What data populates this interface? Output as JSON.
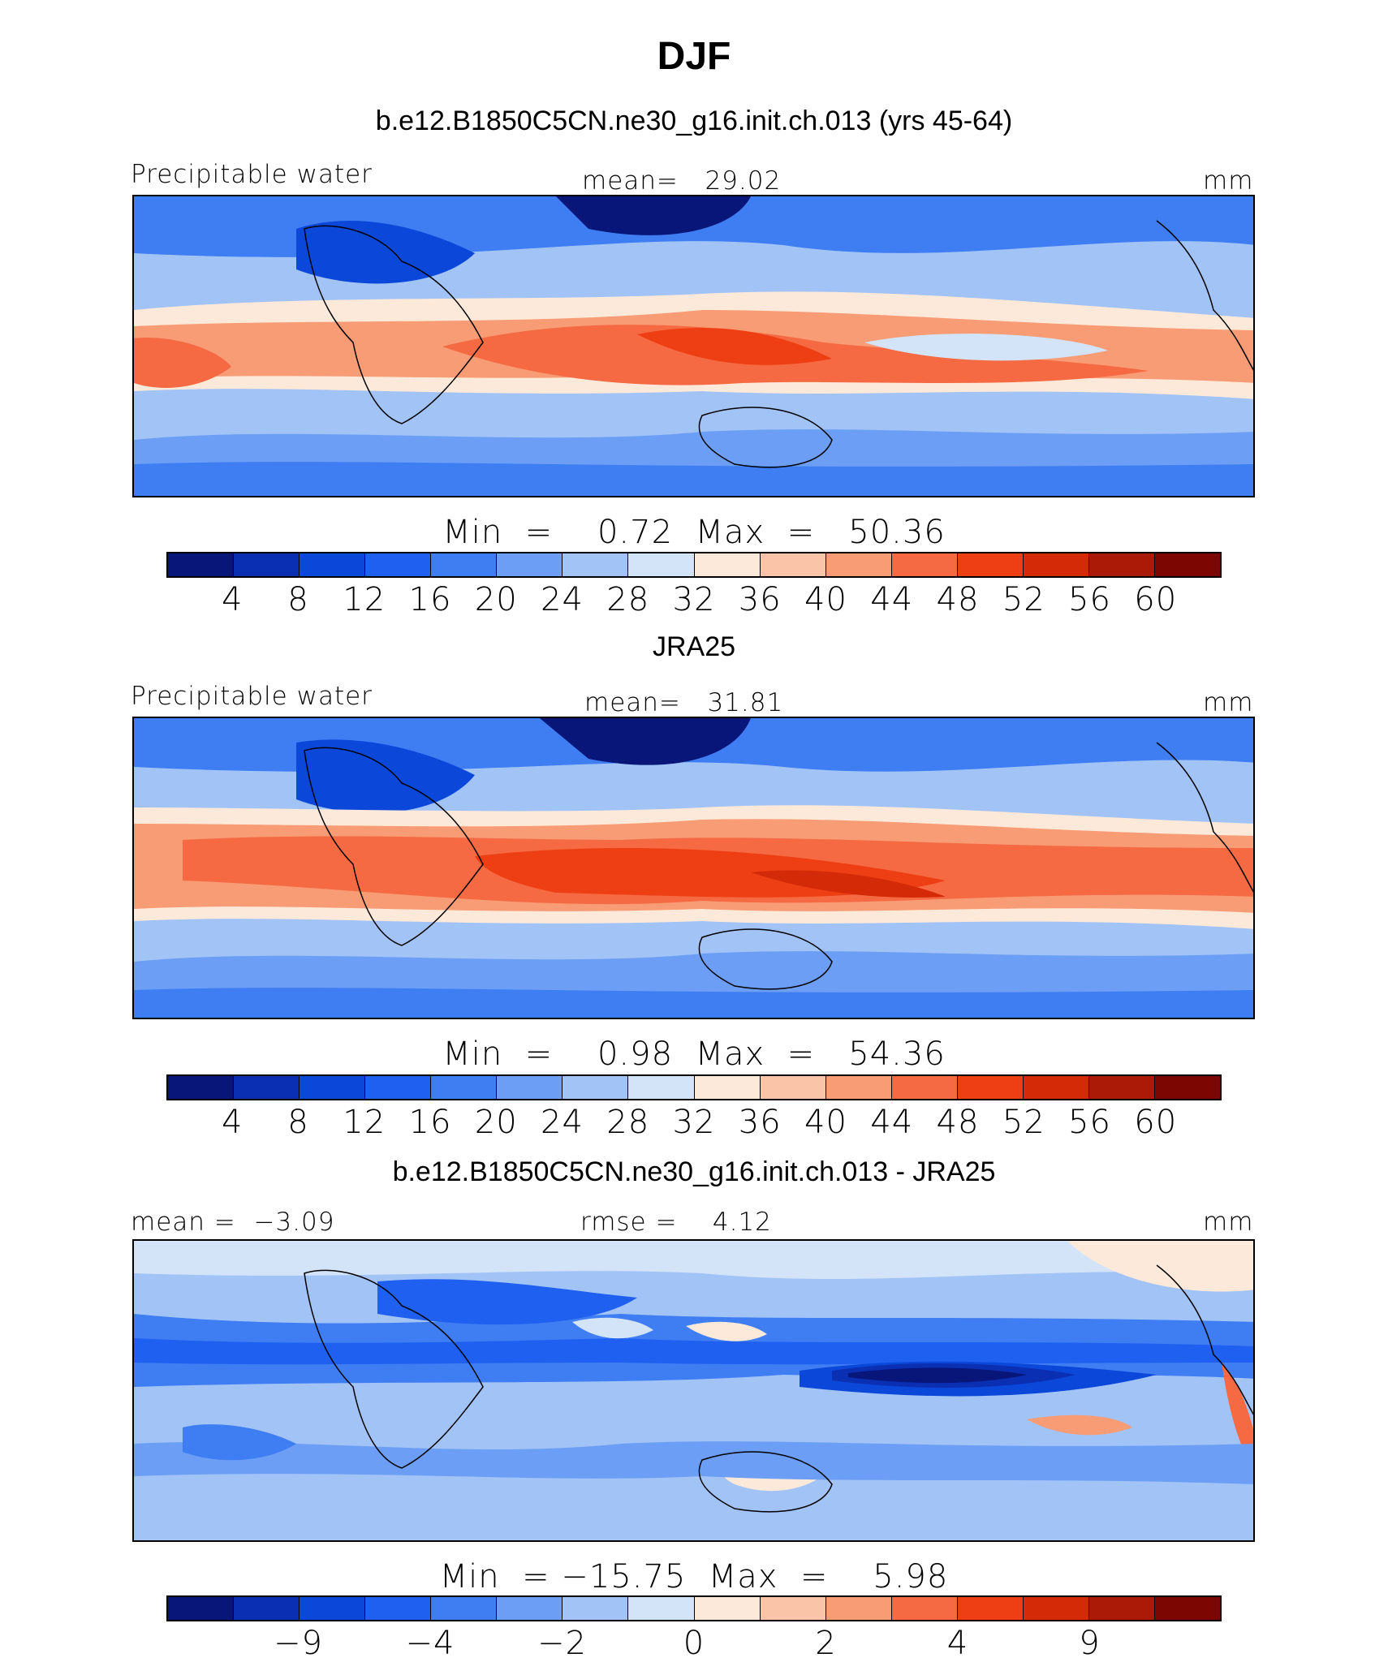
{
  "title": "DJF",
  "palette": [
    "#08167a",
    "#0a2fb3",
    "#0b48d9",
    "#1f60f0",
    "#3f7ef2",
    "#6b9ef4",
    "#a2c3f6",
    "#d3e4f9",
    "#fde9d9",
    "#f9c4a8",
    "#f89c76",
    "#f56a43",
    "#ee3f14",
    "#d42a08",
    "#aa1a06",
    "#7c0602"
  ],
  "colors": {
    "land_outline": "#000000"
  },
  "panels": [
    {
      "title": "b.e12.B1850C5CN.ne30_g16.init.ch.013 (yrs 45-64)",
      "left_label": "Precipitable water",
      "center_label": "mean=   29.02",
      "right_label": "mm",
      "minmax": "Min  =    0.72  Max  =   50.36",
      "ticks": [
        "4",
        "8",
        "12",
        "16",
        "20",
        "24",
        "28",
        "32",
        "36",
        "40",
        "44",
        "48",
        "52",
        "56",
        "60"
      ]
    },
    {
      "title": "JRA25",
      "left_label": "Precipitable water",
      "center_label": "mean=   31.81",
      "right_label": "mm",
      "minmax": "Min  =    0.98  Max  =   54.36",
      "ticks": [
        "4",
        "8",
        "12",
        "16",
        "20",
        "24",
        "28",
        "32",
        "36",
        "40",
        "44",
        "48",
        "52",
        "56",
        "60"
      ]
    },
    {
      "title": "b.e12.B1850C5CN.ne30_g16.init.ch.013 - JRA25",
      "left_label": "mean =  −3.09",
      "center_label": "rmse =    4.12",
      "right_label": "mm",
      "minmax": "Min  = −15.75  Max  =    5.98",
      "ticks": [
        "−9",
        "−4",
        "−2",
        "0",
        "2",
        "4",
        "9"
      ]
    }
  ],
  "chart_data": [
    {
      "type": "heatmap",
      "title": "DJF",
      "subtitle": "b.e12.B1850C5CN.ne30_g16.init.ch.013 (yrs 45-64)",
      "variable": "Precipitable water",
      "units": "mm",
      "mean": 29.02,
      "min": 0.72,
      "max": 50.36,
      "contour_levels": [
        4,
        8,
        12,
        16,
        20,
        24,
        28,
        32,
        36,
        40,
        44,
        48,
        52,
        56,
        60
      ],
      "projection": "cylindrical equidistant, tropics"
    },
    {
      "type": "heatmap",
      "subtitle": "JRA25",
      "variable": "Precipitable water",
      "units": "mm",
      "mean": 31.81,
      "min": 0.98,
      "max": 54.36,
      "contour_levels": [
        4,
        8,
        12,
        16,
        20,
        24,
        28,
        32,
        36,
        40,
        44,
        48,
        52,
        56,
        60
      ]
    },
    {
      "type": "heatmap",
      "subtitle": "b.e12.B1850C5CN.ne30_g16.init.ch.013 - JRA25",
      "units": "mm",
      "mean": -3.09,
      "rmse": 4.12,
      "min": -15.75,
      "max": 5.98,
      "contour_levels": [
        -9,
        -4,
        -2,
        0,
        2,
        4,
        9
      ]
    }
  ]
}
